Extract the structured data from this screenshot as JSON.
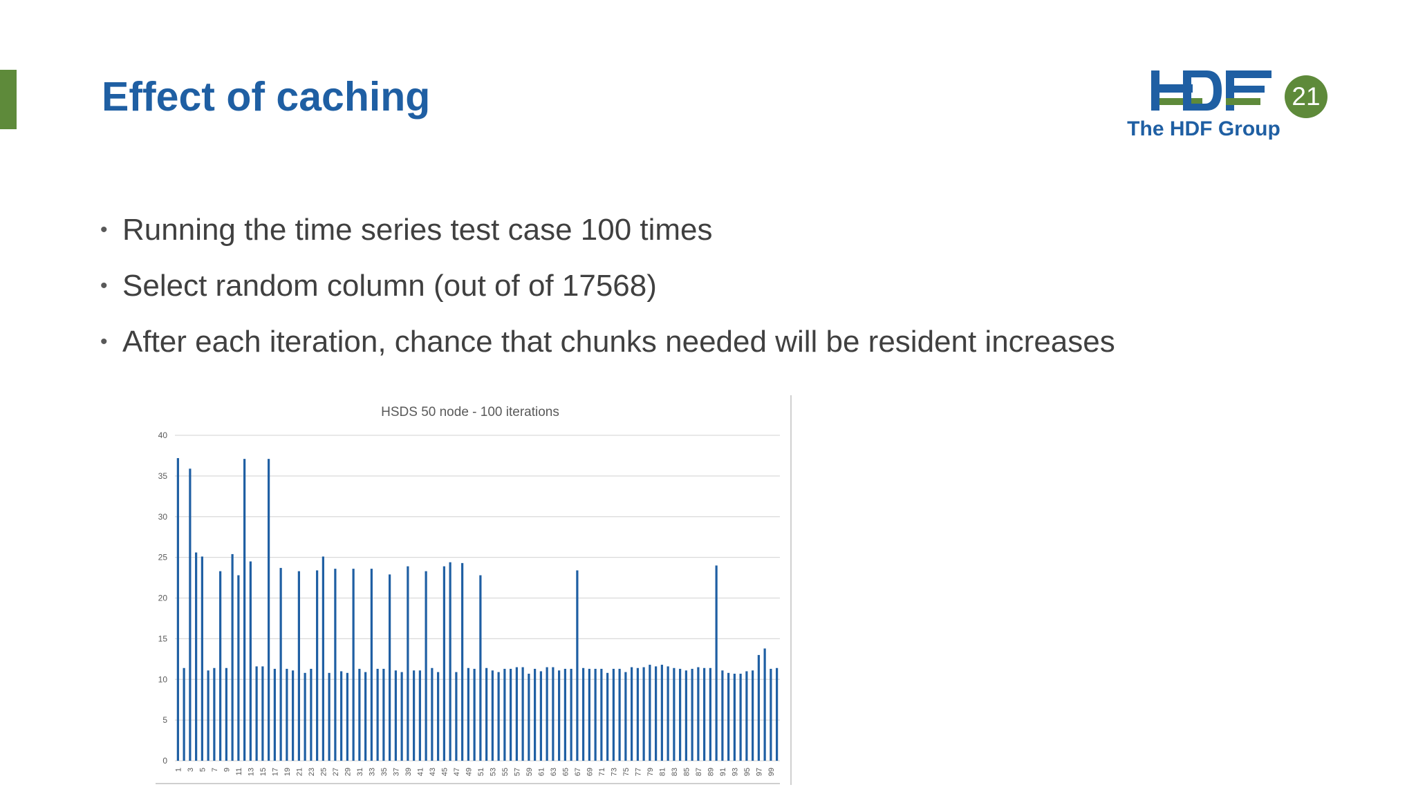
{
  "slide": {
    "title": "Effect of caching",
    "page_number": "21",
    "logo_text": "The HDF Group",
    "bullets": [
      "Running the time series test case 100 times",
      "Select random column (out of of 17568)",
      "After each iteration, chance that chunks needed will be resident increases"
    ],
    "colors": {
      "title": "#1f5fa3",
      "accent": "#5e8a3a",
      "bar": "#1f5fa3"
    }
  },
  "chart_data": {
    "type": "bar",
    "title": "HSDS 50 node - 100 iterations",
    "xlabel": "",
    "ylabel": "",
    "ylim": [
      0,
      40
    ],
    "yticks": [
      0,
      5,
      10,
      15,
      20,
      25,
      30,
      35,
      40
    ],
    "grid": true,
    "categories": [
      "1",
      "2",
      "3",
      "4",
      "5",
      "6",
      "7",
      "8",
      "9",
      "10",
      "11",
      "12",
      "13",
      "14",
      "15",
      "16",
      "17",
      "18",
      "19",
      "20",
      "21",
      "22",
      "23",
      "24",
      "25",
      "26",
      "27",
      "28",
      "29",
      "30",
      "31",
      "32",
      "33",
      "34",
      "35",
      "36",
      "37",
      "38",
      "39",
      "40",
      "41",
      "42",
      "43",
      "44",
      "45",
      "46",
      "47",
      "48",
      "49",
      "50",
      "51",
      "52",
      "53",
      "54",
      "55",
      "56",
      "57",
      "58",
      "59",
      "60",
      "61",
      "62",
      "63",
      "64",
      "65",
      "66",
      "67",
      "68",
      "69",
      "70",
      "71",
      "72",
      "73",
      "74",
      "75",
      "76",
      "77",
      "78",
      "79",
      "80",
      "81",
      "82",
      "83",
      "84",
      "85",
      "86",
      "87",
      "88",
      "89",
      "90",
      "91",
      "92",
      "93",
      "94",
      "95",
      "96",
      "97",
      "98",
      "99",
      "100"
    ],
    "values": [
      37.2,
      11.4,
      35.9,
      25.6,
      25.1,
      11.1,
      11.4,
      23.3,
      11.4,
      25.4,
      22.8,
      37.1,
      24.5,
      11.6,
      11.6,
      37.1,
      11.3,
      23.7,
      11.3,
      11.1,
      23.3,
      10.8,
      11.3,
      23.4,
      25.1,
      10.8,
      23.6,
      11.0,
      10.8,
      23.6,
      11.3,
      10.9,
      23.6,
      11.3,
      11.3,
      22.9,
      11.1,
      10.9,
      23.9,
      11.1,
      11.1,
      23.3,
      11.4,
      10.9,
      23.9,
      24.4,
      10.9,
      24.3,
      11.4,
      11.3,
      22.8,
      11.4,
      11.1,
      10.9,
      11.3,
      11.3,
      11.5,
      11.5,
      10.7,
      11.3,
      11.0,
      11.5,
      11.5,
      11.1,
      11.3,
      11.3,
      23.4,
      11.4,
      11.3,
      11.3,
      11.3,
      10.8,
      11.3,
      11.3,
      10.9,
      11.5,
      11.4,
      11.5,
      11.8,
      11.6,
      11.8,
      11.6,
      11.4,
      11.3,
      11.1,
      11.3,
      11.5,
      11.4,
      11.4,
      24.0,
      11.1,
      10.8,
      10.7,
      10.7,
      11.0,
      11.1,
      13.0,
      13.8,
      11.3,
      11.4
    ]
  }
}
